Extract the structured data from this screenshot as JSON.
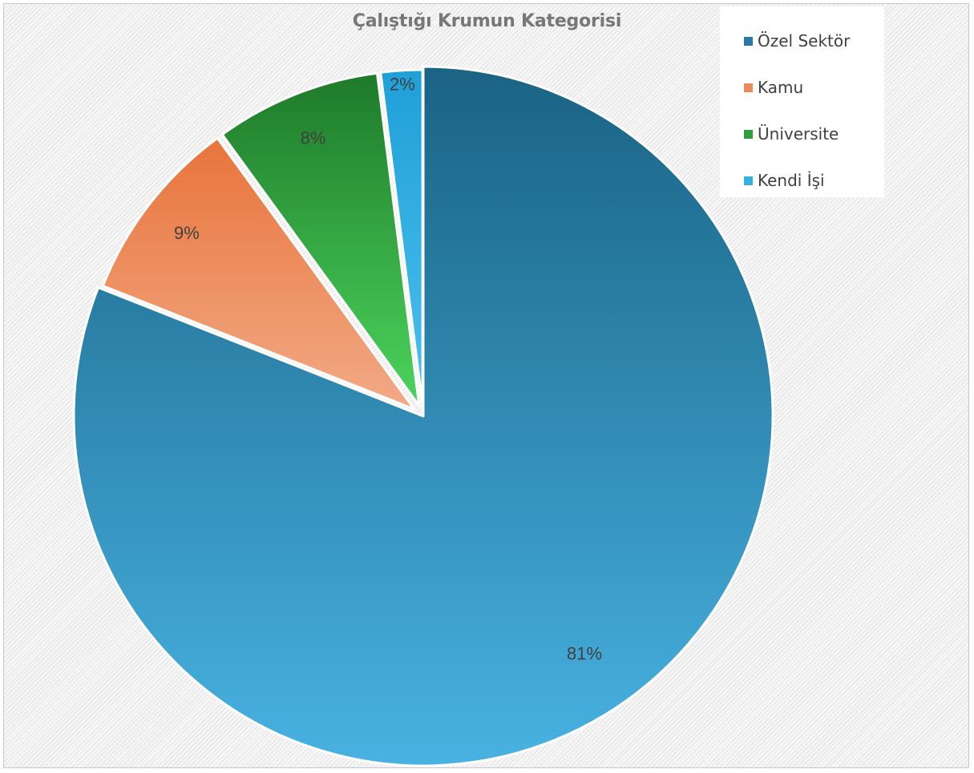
{
  "chart_data": {
    "type": "pie",
    "title": "Çalıştığı Krumun Kategorisi",
    "legend_position": "top-right",
    "slices": [
      {
        "label": "Özel Sektör",
        "value": 81,
        "data_label": "81%",
        "color": "#2E86B8",
        "gradient": [
          "#1A6384",
          "#48B2E2"
        ]
      },
      {
        "label": "Kamu",
        "value": 9,
        "data_label": "9%",
        "color": "#E8743B",
        "gradient": [
          "#E8743B",
          "#F2AA86"
        ]
      },
      {
        "label": "Üniversite",
        "value": 8,
        "data_label": "8%",
        "color": "#2E9E3E",
        "gradient": [
          "#1E7A2A",
          "#4CD45C"
        ]
      },
      {
        "label": "Kendi İşi",
        "value": 2,
        "data_label": "2%",
        "color": "#33B1E3",
        "gradient": [
          "#1FA0D8",
          "#4CC0EE"
        ]
      }
    ]
  }
}
